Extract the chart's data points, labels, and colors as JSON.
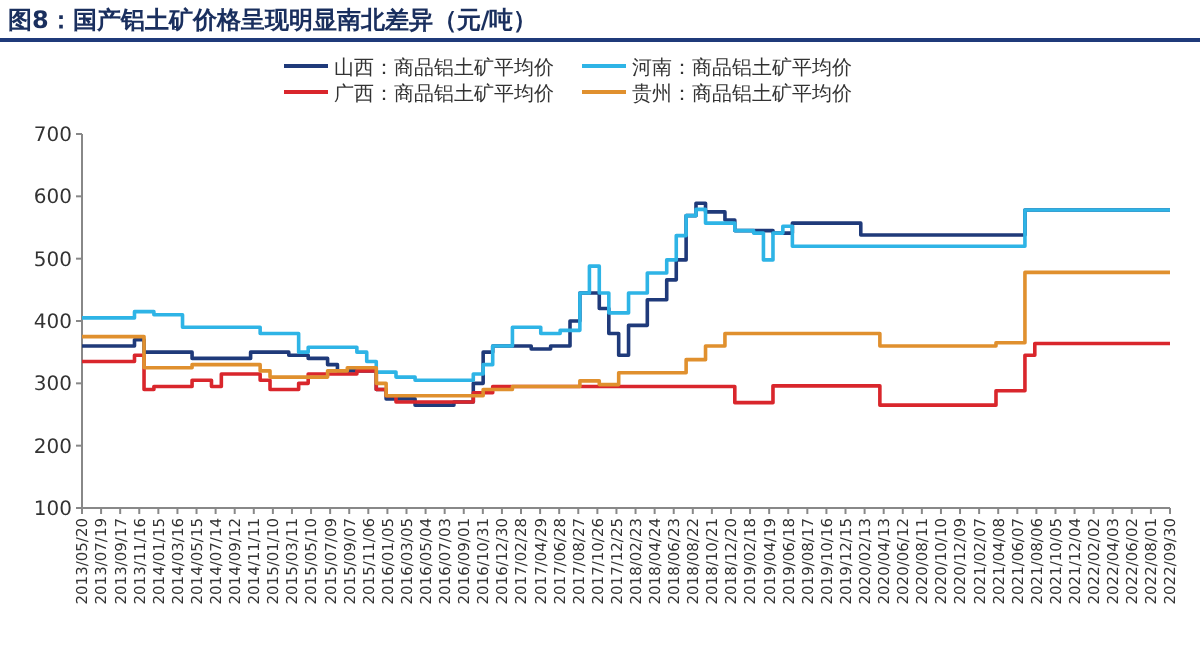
{
  "chart_data": {
    "type": "step",
    "title": "图8：国产铝土矿价格呈现明显南北差异（元/吨）",
    "xlim": [
      "2013-05-20",
      "2022-09-30"
    ],
    "xticks": [
      {
        "value": "2013-05-20",
        "label": "2013/05/20"
      },
      {
        "value": "2013-07-19",
        "label": "2013/07/19"
      },
      {
        "value": "2013-09-17",
        "label": "2013/09/17"
      },
      {
        "value": "2013-11-16",
        "label": "2013/11/16"
      },
      {
        "value": "2014-01-15",
        "label": "2014/01/15"
      },
      {
        "value": "2014-03-16",
        "label": "2014/03/16"
      },
      {
        "value": "2014-05-15",
        "label": "2014/05/15"
      },
      {
        "value": "2014-07-14",
        "label": "2014/07/14"
      },
      {
        "value": "2014-09-12",
        "label": "2014/09/12"
      },
      {
        "value": "2014-11-11",
        "label": "2014/11/11"
      },
      {
        "value": "2015-01-10",
        "label": "2015/01/10"
      },
      {
        "value": "2015-03-11",
        "label": "2015/03/11"
      },
      {
        "value": "2015-05-10",
        "label": "2015/05/10"
      },
      {
        "value": "2015-07-09",
        "label": "2015/07/09"
      },
      {
        "value": "2015-09-07",
        "label": "2015/09/07"
      },
      {
        "value": "2015-11-06",
        "label": "2015/11/06"
      },
      {
        "value": "2016-01-05",
        "label": "2016/01/05"
      },
      {
        "value": "2016-03-05",
        "label": "2016/03/05"
      },
      {
        "value": "2016-05-04",
        "label": "2016/05/04"
      },
      {
        "value": "2016-07-03",
        "label": "2016/07/03"
      },
      {
        "value": "2016-09-01",
        "label": "2016/09/01"
      },
      {
        "value": "2016-10-31",
        "label": "2016/10/31"
      },
      {
        "value": "2016-12-30",
        "label": "2016/12/30"
      },
      {
        "value": "2017-02-28",
        "label": "2017/02/28"
      },
      {
        "value": "2017-04-29",
        "label": "2017/04/29"
      },
      {
        "value": "2017-06-28",
        "label": "2017/06/28"
      },
      {
        "value": "2017-08-27",
        "label": "2017/08/27"
      },
      {
        "value": "2017-10-26",
        "label": "2017/10/26"
      },
      {
        "value": "2017-12-25",
        "label": "2017/12/25"
      },
      {
        "value": "2018-02-23",
        "label": "2018/02/23"
      },
      {
        "value": "2018-04-24",
        "label": "2018/04/24"
      },
      {
        "value": "2018-06-23",
        "label": "2018/06/23"
      },
      {
        "value": "2018-08-22",
        "label": "2018/08/22"
      },
      {
        "value": "2018-10-21",
        "label": "2018/10/21"
      },
      {
        "value": "2018-12-20",
        "label": "2018/12/20"
      },
      {
        "value": "2019-02-18",
        "label": "2019/02/18"
      },
      {
        "value": "2019-04-19",
        "label": "2019/04/19"
      },
      {
        "value": "2019-06-18",
        "label": "2019/06/18"
      },
      {
        "value": "2019-08-17",
        "label": "2019/08/17"
      },
      {
        "value": "2019-10-16",
        "label": "2019/10/16"
      },
      {
        "value": "2019-12-15",
        "label": "2019/12/15"
      },
      {
        "value": "2020-02-13",
        "label": "2020/02/13"
      },
      {
        "value": "2020-04-13",
        "label": "2020/04/13"
      },
      {
        "value": "2020-06-12",
        "label": "2020/06/12"
      },
      {
        "value": "2020-08-11",
        "label": "2020/08/11"
      },
      {
        "value": "2020-10-10",
        "label": "2020/10/10"
      },
      {
        "value": "2020-12-09",
        "label": "2020/12/09"
      },
      {
        "value": "2021-02-07",
        "label": "2021/02/07"
      },
      {
        "value": "2021-04-08",
        "label": "2021/04/08"
      },
      {
        "value": "2021-06-07",
        "label": "2021/06/07"
      },
      {
        "value": "2021-08-06",
        "label": "2021/08/06"
      },
      {
        "value": "2021-10-05",
        "label": "2021/10/05"
      },
      {
        "value": "2021-12-04",
        "label": "2021/12/04"
      },
      {
        "value": "2022-02-02",
        "label": "2022/02/02"
      },
      {
        "value": "2022-04-03",
        "label": "2022/04/03"
      },
      {
        "value": "2022-06-02",
        "label": "2022/06/02"
      },
      {
        "value": "2022-08-01",
        "label": "2022/08/01"
      },
      {
        "value": "2022-09-30",
        "label": "2022/09/30"
      }
    ],
    "ylim": [
      100,
      700
    ],
    "yticks": [
      100,
      200,
      300,
      400,
      500,
      600,
      700
    ],
    "legend": "top",
    "grid": false,
    "series": [
      {
        "name": "山西：商品铝土矿平均价",
        "color": "#1f3a7a",
        "x": [
          "2013-05-20",
          "2013-11",
          "2013-12",
          "2014-05",
          "2014-11",
          "2015-03",
          "2015-05",
          "2015-07",
          "2015-08",
          "2015-12",
          "2016-01",
          "2016-04",
          "2016-08",
          "2016-10",
          "2016-11",
          "2016-12",
          "2017-04",
          "2017-06",
          "2017-08",
          "2017-09",
          "2017-11",
          "2017-12",
          "2018-01",
          "2018-02",
          "2018-04",
          "2018-06",
          "2018-07",
          "2018-08",
          "2018-09",
          "2018-10",
          "2018-12",
          "2019-01",
          "2019-05",
          "2019-07",
          "2020-02",
          "2021-07",
          "2022-09-30"
        ],
        "values": [
          360,
          370,
          350,
          340,
          350,
          345,
          340,
          330,
          320,
          290,
          275,
          265,
          270,
          300,
          350,
          360,
          355,
          360,
          400,
          445,
          420,
          380,
          345,
          393,
          434,
          466,
          498,
          569,
          589,
          575,
          562,
          545,
          541,
          557,
          538,
          578,
          578
        ]
      },
      {
        "name": "河南：商品铝土矿平均价",
        "color": "#2eb4e6",
        "x": [
          "2013-05-20",
          "2013-11",
          "2014-01",
          "2014-04",
          "2014-12",
          "2015-04",
          "2015-05",
          "2015-10",
          "2015-11",
          "2015-12",
          "2016-02",
          "2016-04",
          "2016-10",
          "2016-11",
          "2016-12",
          "2017-02",
          "2017-05",
          "2017-07",
          "2017-09",
          "2017-10",
          "2017-11",
          "2017-12",
          "2018-02",
          "2018-04",
          "2018-06",
          "2018-07",
          "2018-08",
          "2018-09",
          "2018-10",
          "2019-01",
          "2019-03",
          "2019-04",
          "2019-05",
          "2019-06",
          "2019-07",
          "2021-07",
          "2022-09-30"
        ],
        "values": [
          405,
          415,
          410,
          390,
          380,
          350,
          358,
          350,
          335,
          318,
          310,
          305,
          315,
          330,
          360,
          390,
          380,
          385,
          445,
          488,
          445,
          413,
          445,
          477,
          498,
          537,
          569,
          579,
          557,
          545,
          541,
          498,
          541,
          552,
          520,
          578,
          578
        ]
      },
      {
        "name": "广西：商品铝土矿平均价",
        "color": "#d9262c",
        "x": [
          "2013-05-20",
          "2013-11",
          "2013-12",
          "2014-01",
          "2014-05",
          "2014-07",
          "2014-08",
          "2014-12",
          "2015-01",
          "2015-04",
          "2015-05",
          "2015-10",
          "2015-12",
          "2016-01",
          "2016-02",
          "2016-10",
          "2016-12",
          "2019-01",
          "2019-05",
          "2020-04",
          "2021-04",
          "2021-07",
          "2021-08",
          "2022-09-30"
        ],
        "values": [
          335,
          345,
          290,
          295,
          305,
          295,
          315,
          305,
          290,
          300,
          315,
          320,
          290,
          280,
          270,
          285,
          295,
          269,
          296,
          265,
          288,
          345,
          364,
          364
        ]
      },
      {
        "name": "贵州：商品铝土矿平均价",
        "color": "#e0902e",
        "x": [
          "2013-05-20",
          "2013-12",
          "2014-05",
          "2014-12",
          "2015-01",
          "2015-07",
          "2015-09",
          "2015-12",
          "2016-01",
          "2016-11",
          "2017-02",
          "2017-09",
          "2017-11",
          "2018-01",
          "2018-08",
          "2018-10",
          "2018-12",
          "2020-04",
          "2021-04",
          "2021-07",
          "2022-09-30"
        ],
        "values": [
          375,
          325,
          330,
          320,
          310,
          320,
          325,
          300,
          280,
          290,
          295,
          304,
          298,
          317,
          338,
          360,
          380,
          360,
          365,
          478,
          478
        ]
      }
    ]
  }
}
